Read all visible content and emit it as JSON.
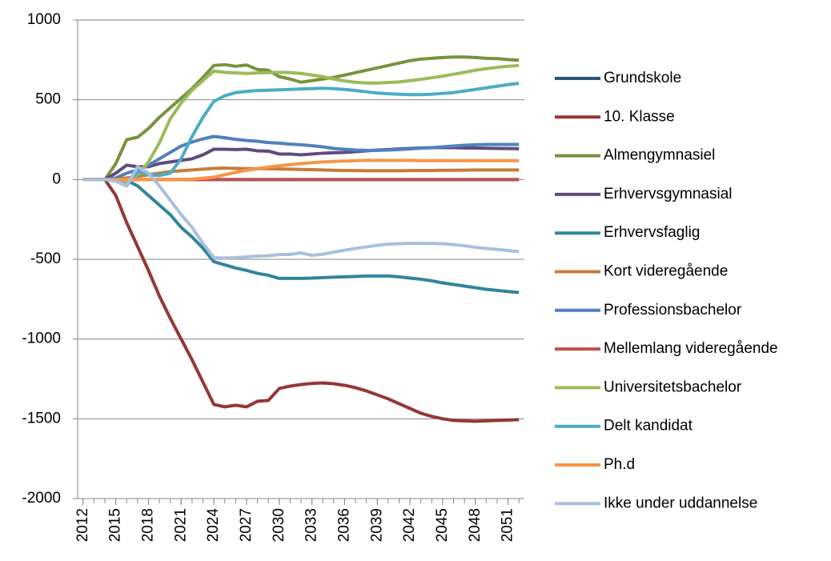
{
  "chart_data": {
    "type": "line",
    "x": [
      2012,
      2013,
      2014,
      2015,
      2016,
      2017,
      2018,
      2019,
      2020,
      2021,
      2022,
      2023,
      2024,
      2025,
      2026,
      2027,
      2028,
      2029,
      2030,
      2031,
      2032,
      2033,
      2034,
      2035,
      2036,
      2037,
      2038,
      2039,
      2040,
      2041,
      2042,
      2043,
      2044,
      2045,
      2046,
      2047,
      2048,
      2049,
      2050,
      2051,
      2052
    ],
    "xlim": [
      2011.5,
      2052.5
    ],
    "xticks": [
      2012,
      2015,
      2018,
      2021,
      2024,
      2027,
      2030,
      2033,
      2036,
      2039,
      2042,
      2045,
      2048,
      2051
    ],
    "ylim": [
      -2000,
      1000
    ],
    "yticks": [
      -2000,
      -1500,
      -1000,
      -500,
      0,
      500,
      1000
    ],
    "grid": true,
    "legend": "right",
    "series": [
      {
        "name": "Grundskole",
        "color": "#2c5282",
        "values": [
          0,
          0,
          0,
          0,
          0,
          0,
          0,
          0,
          0,
          0,
          0,
          0,
          0,
          0,
          0,
          0,
          0,
          0,
          0,
          0,
          0,
          0,
          0,
          0,
          0,
          0,
          0,
          0,
          0,
          0,
          0,
          0,
          0,
          0,
          0,
          0,
          0,
          0,
          0,
          0,
          0
        ]
      },
      {
        "name": "10. Klasse",
        "color": "#953735",
        "values": [
          0,
          0,
          0,
          -100,
          -270,
          -420,
          -570,
          -730,
          -870,
          -1000,
          -1130,
          -1270,
          -1410,
          -1425,
          -1415,
          -1425,
          -1390,
          -1385,
          -1310,
          -1295,
          -1285,
          -1278,
          -1275,
          -1280,
          -1290,
          -1305,
          -1325,
          -1350,
          -1375,
          -1405,
          -1435,
          -1465,
          -1485,
          -1500,
          -1510,
          -1513,
          -1515,
          -1513,
          -1510,
          -1508,
          -1505
        ]
      },
      {
        "name": "Almengymnasiel",
        "color": "#77933c",
        "values": [
          0,
          0,
          0,
          100,
          250,
          265,
          320,
          390,
          450,
          510,
          570,
          640,
          715,
          720,
          710,
          718,
          690,
          685,
          645,
          630,
          610,
          620,
          630,
          640,
          655,
          670,
          685,
          700,
          715,
          730,
          745,
          755,
          760,
          765,
          768,
          768,
          765,
          760,
          758,
          752,
          748
        ]
      },
      {
        "name": "Erhvervsgymnasial",
        "color": "#604a7b",
        "values": [
          0,
          0,
          0,
          40,
          90,
          80,
          80,
          100,
          110,
          120,
          130,
          155,
          190,
          190,
          188,
          190,
          180,
          178,
          160,
          160,
          155,
          160,
          165,
          168,
          170,
          175,
          180,
          185,
          188,
          192,
          195,
          198,
          200,
          200,
          200,
          198,
          197,
          196,
          195,
          194,
          193
        ]
      },
      {
        "name": "Erhvervsfaglig",
        "color": "#31859c",
        "values": [
          0,
          0,
          0,
          0,
          -5,
          -40,
          -100,
          -160,
          -220,
          -300,
          -360,
          -430,
          -515,
          -535,
          -555,
          -570,
          -588,
          -600,
          -620,
          -620,
          -620,
          -618,
          -615,
          -612,
          -610,
          -608,
          -605,
          -605,
          -605,
          -610,
          -618,
          -625,
          -635,
          -648,
          -658,
          -668,
          -678,
          -688,
          -695,
          -702,
          -708
        ]
      },
      {
        "name": "Kort videregående",
        "color": "#c77c3a",
        "values": [
          0,
          0,
          0,
          5,
          10,
          20,
          30,
          40,
          50,
          55,
          60,
          65,
          70,
          72,
          70,
          68,
          68,
          68,
          66,
          65,
          63,
          62,
          60,
          58,
          57,
          56,
          55,
          55,
          55,
          55,
          56,
          57,
          57,
          58,
          58,
          59,
          60,
          60,
          60,
          60,
          60
        ]
      },
      {
        "name": "Professionsbachelor",
        "color": "#4f81bd",
        "values": [
          0,
          0,
          0,
          10,
          40,
          60,
          90,
          130,
          170,
          210,
          235,
          255,
          270,
          262,
          252,
          245,
          240,
          232,
          228,
          222,
          218,
          212,
          205,
          195,
          190,
          185,
          183,
          183,
          185,
          188,
          192,
          196,
          200,
          205,
          210,
          215,
          218,
          220,
          220,
          220,
          220
        ]
      },
      {
        "name": "Mellemlang videregående",
        "color": "#c0504d",
        "values": [
          0,
          0,
          0,
          0,
          0,
          0,
          0,
          0,
          0,
          0,
          0,
          0,
          0,
          0,
          0,
          0,
          0,
          0,
          0,
          0,
          0,
          0,
          0,
          0,
          0,
          0,
          0,
          0,
          0,
          0,
          0,
          0,
          0,
          0,
          0,
          0,
          0,
          0,
          0,
          0,
          0
        ]
      },
      {
        "name": "Universitetsbachelor",
        "color": "#9bbb59",
        "values": [
          0,
          0,
          0,
          0,
          -20,
          30,
          110,
          230,
          380,
          480,
          560,
          620,
          680,
          672,
          668,
          665,
          668,
          670,
          672,
          670,
          665,
          655,
          645,
          630,
          618,
          610,
          605,
          605,
          608,
          612,
          620,
          628,
          638,
          648,
          660,
          672,
          685,
          695,
          703,
          710,
          715
        ]
      },
      {
        "name": "Delt kandidat",
        "color": "#4bacc6",
        "values": [
          0,
          0,
          0,
          -10,
          -40,
          50,
          30,
          25,
          40,
          130,
          270,
          390,
          490,
          525,
          545,
          552,
          558,
          560,
          562,
          565,
          568,
          570,
          572,
          570,
          565,
          558,
          550,
          542,
          538,
          535,
          532,
          532,
          535,
          540,
          545,
          555,
          565,
          575,
          585,
          595,
          603
        ]
      },
      {
        "name": "Ph.d",
        "color": "#f79646",
        "values": [
          0,
          0,
          0,
          0,
          0,
          0,
          0,
          0,
          0,
          0,
          3,
          8,
          15,
          30,
          45,
          58,
          68,
          78,
          86,
          93,
          100,
          105,
          110,
          113,
          116,
          118,
          120,
          120,
          120,
          120,
          120,
          118,
          118,
          118,
          118,
          118,
          118,
          118,
          118,
          118,
          118
        ]
      },
      {
        "name": "Ikke under uddannelse",
        "color": "#aabfdd",
        "values": [
          0,
          0,
          0,
          -10,
          -40,
          80,
          40,
          -40,
          -130,
          -220,
          -300,
          -400,
          -490,
          -492,
          -490,
          -485,
          -480,
          -478,
          -470,
          -470,
          -460,
          -475,
          -468,
          -455,
          -443,
          -432,
          -422,
          -413,
          -405,
          -402,
          -400,
          -400,
          -400,
          -402,
          -408,
          -415,
          -425,
          -432,
          -438,
          -445,
          -452
        ]
      }
    ]
  }
}
